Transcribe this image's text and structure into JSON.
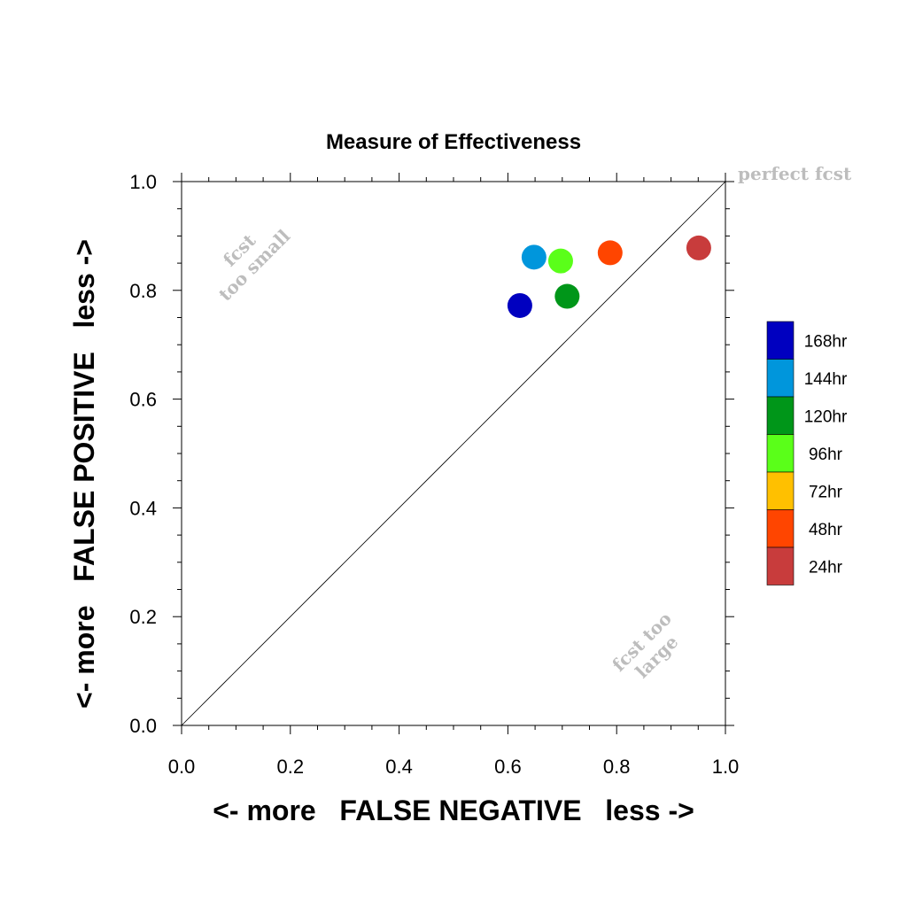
{
  "chart_data": {
    "type": "scatter",
    "title": "Measure of Effectiveness",
    "xlabel": "<- more   FALSE NEGATIVE   less ->",
    "ylabel": "<- more   FALSE POSITIVE   less ->",
    "xlim": [
      0.0,
      1.0
    ],
    "ylim": [
      0.0,
      1.0
    ],
    "x_ticks": [
      "0.0",
      "0.2",
      "0.4",
      "0.6",
      "0.8",
      "1.0"
    ],
    "y_ticks": [
      "0.0",
      "0.2",
      "0.4",
      "0.6",
      "0.8",
      "1.0"
    ],
    "grid": false,
    "legend_placement": "right",
    "diagonal_reference_line": true,
    "series": [
      {
        "name": "168hr",
        "color": "#0000c0",
        "x": 0.622,
        "y": 0.772
      },
      {
        "name": "144hr",
        "color": "#0096dc",
        "x": 0.648,
        "y": 0.861
      },
      {
        "name": "120hr",
        "color": "#009619",
        "x": 0.709,
        "y": 0.789
      },
      {
        "name": "96hr",
        "color": "#5aff19",
        "x": 0.697,
        "y": 0.854
      },
      {
        "name": "72hr",
        "color": "#ffc000",
        "x": null,
        "y": null
      },
      {
        "name": "48hr",
        "color": "#ff4500",
        "x": 0.788,
        "y": 0.869
      },
      {
        "name": "24hr",
        "color": "#c83c3c",
        "x": 0.951,
        "y": 0.878
      }
    ],
    "annotations": [
      {
        "lines": [
          "fcst",
          "too small"
        ],
        "x": 0.12,
        "y": 0.86
      },
      {
        "lines": [
          "fcst too",
          "large"
        ],
        "x": 0.86,
        "y": 0.14
      },
      {
        "lines": [
          "perfect fcst"
        ],
        "x": 1.0,
        "y": 1.0
      }
    ]
  }
}
